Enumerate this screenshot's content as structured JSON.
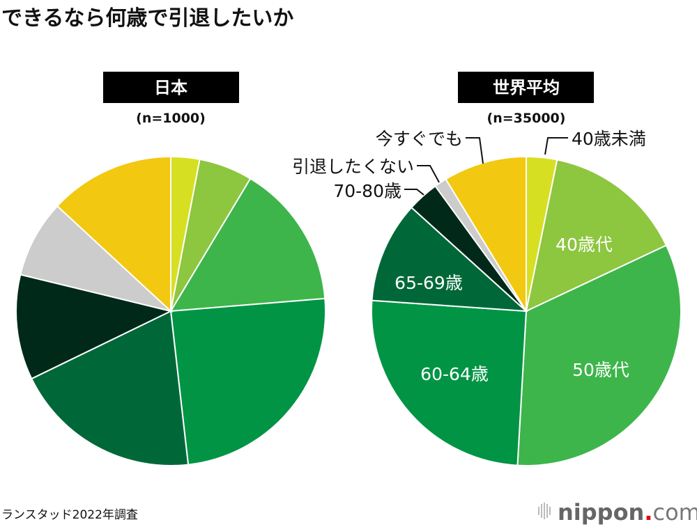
{
  "chart_data": [
    {
      "type": "pie",
      "title": "日本",
      "sample": "(n=1000)",
      "categories": [
        "40歳未満",
        "40歳代",
        "50歳代",
        "60-64歳",
        "65-69歳",
        "70-80歳",
        "引退したくない",
        "今すぐでも"
      ],
      "values": [
        3.0,
        5.6,
        15.1,
        24.5,
        19.6,
        11.0,
        8.1,
        13.1
      ],
      "colors": [
        "#d7df23",
        "#8dc63f",
        "#3db54a",
        "#009444",
        "#006838",
        "#00291a",
        "#cccccc",
        "#f2c811"
      ]
    },
    {
      "type": "pie",
      "title": "世界平均",
      "sample": "(n=35000)",
      "categories": [
        "40歳未満",
        "40歳代",
        "50歳代",
        "60-64歳",
        "65-69歳",
        "70-80歳",
        "引退したくない",
        "今すぐでも"
      ],
      "values": [
        3.2,
        14.8,
        32.9,
        25.2,
        10.6,
        3.3,
        1.3,
        8.7
      ],
      "colors": [
        "#d7df23",
        "#8dc63f",
        "#3db54a",
        "#009444",
        "#006838",
        "#00291a",
        "#cccccc",
        "#f2c811"
      ]
    }
  ],
  "title": "できるなら何歳で引退したいか",
  "source": "ランスタッド2022年調査",
  "logo": "nippon.com"
}
